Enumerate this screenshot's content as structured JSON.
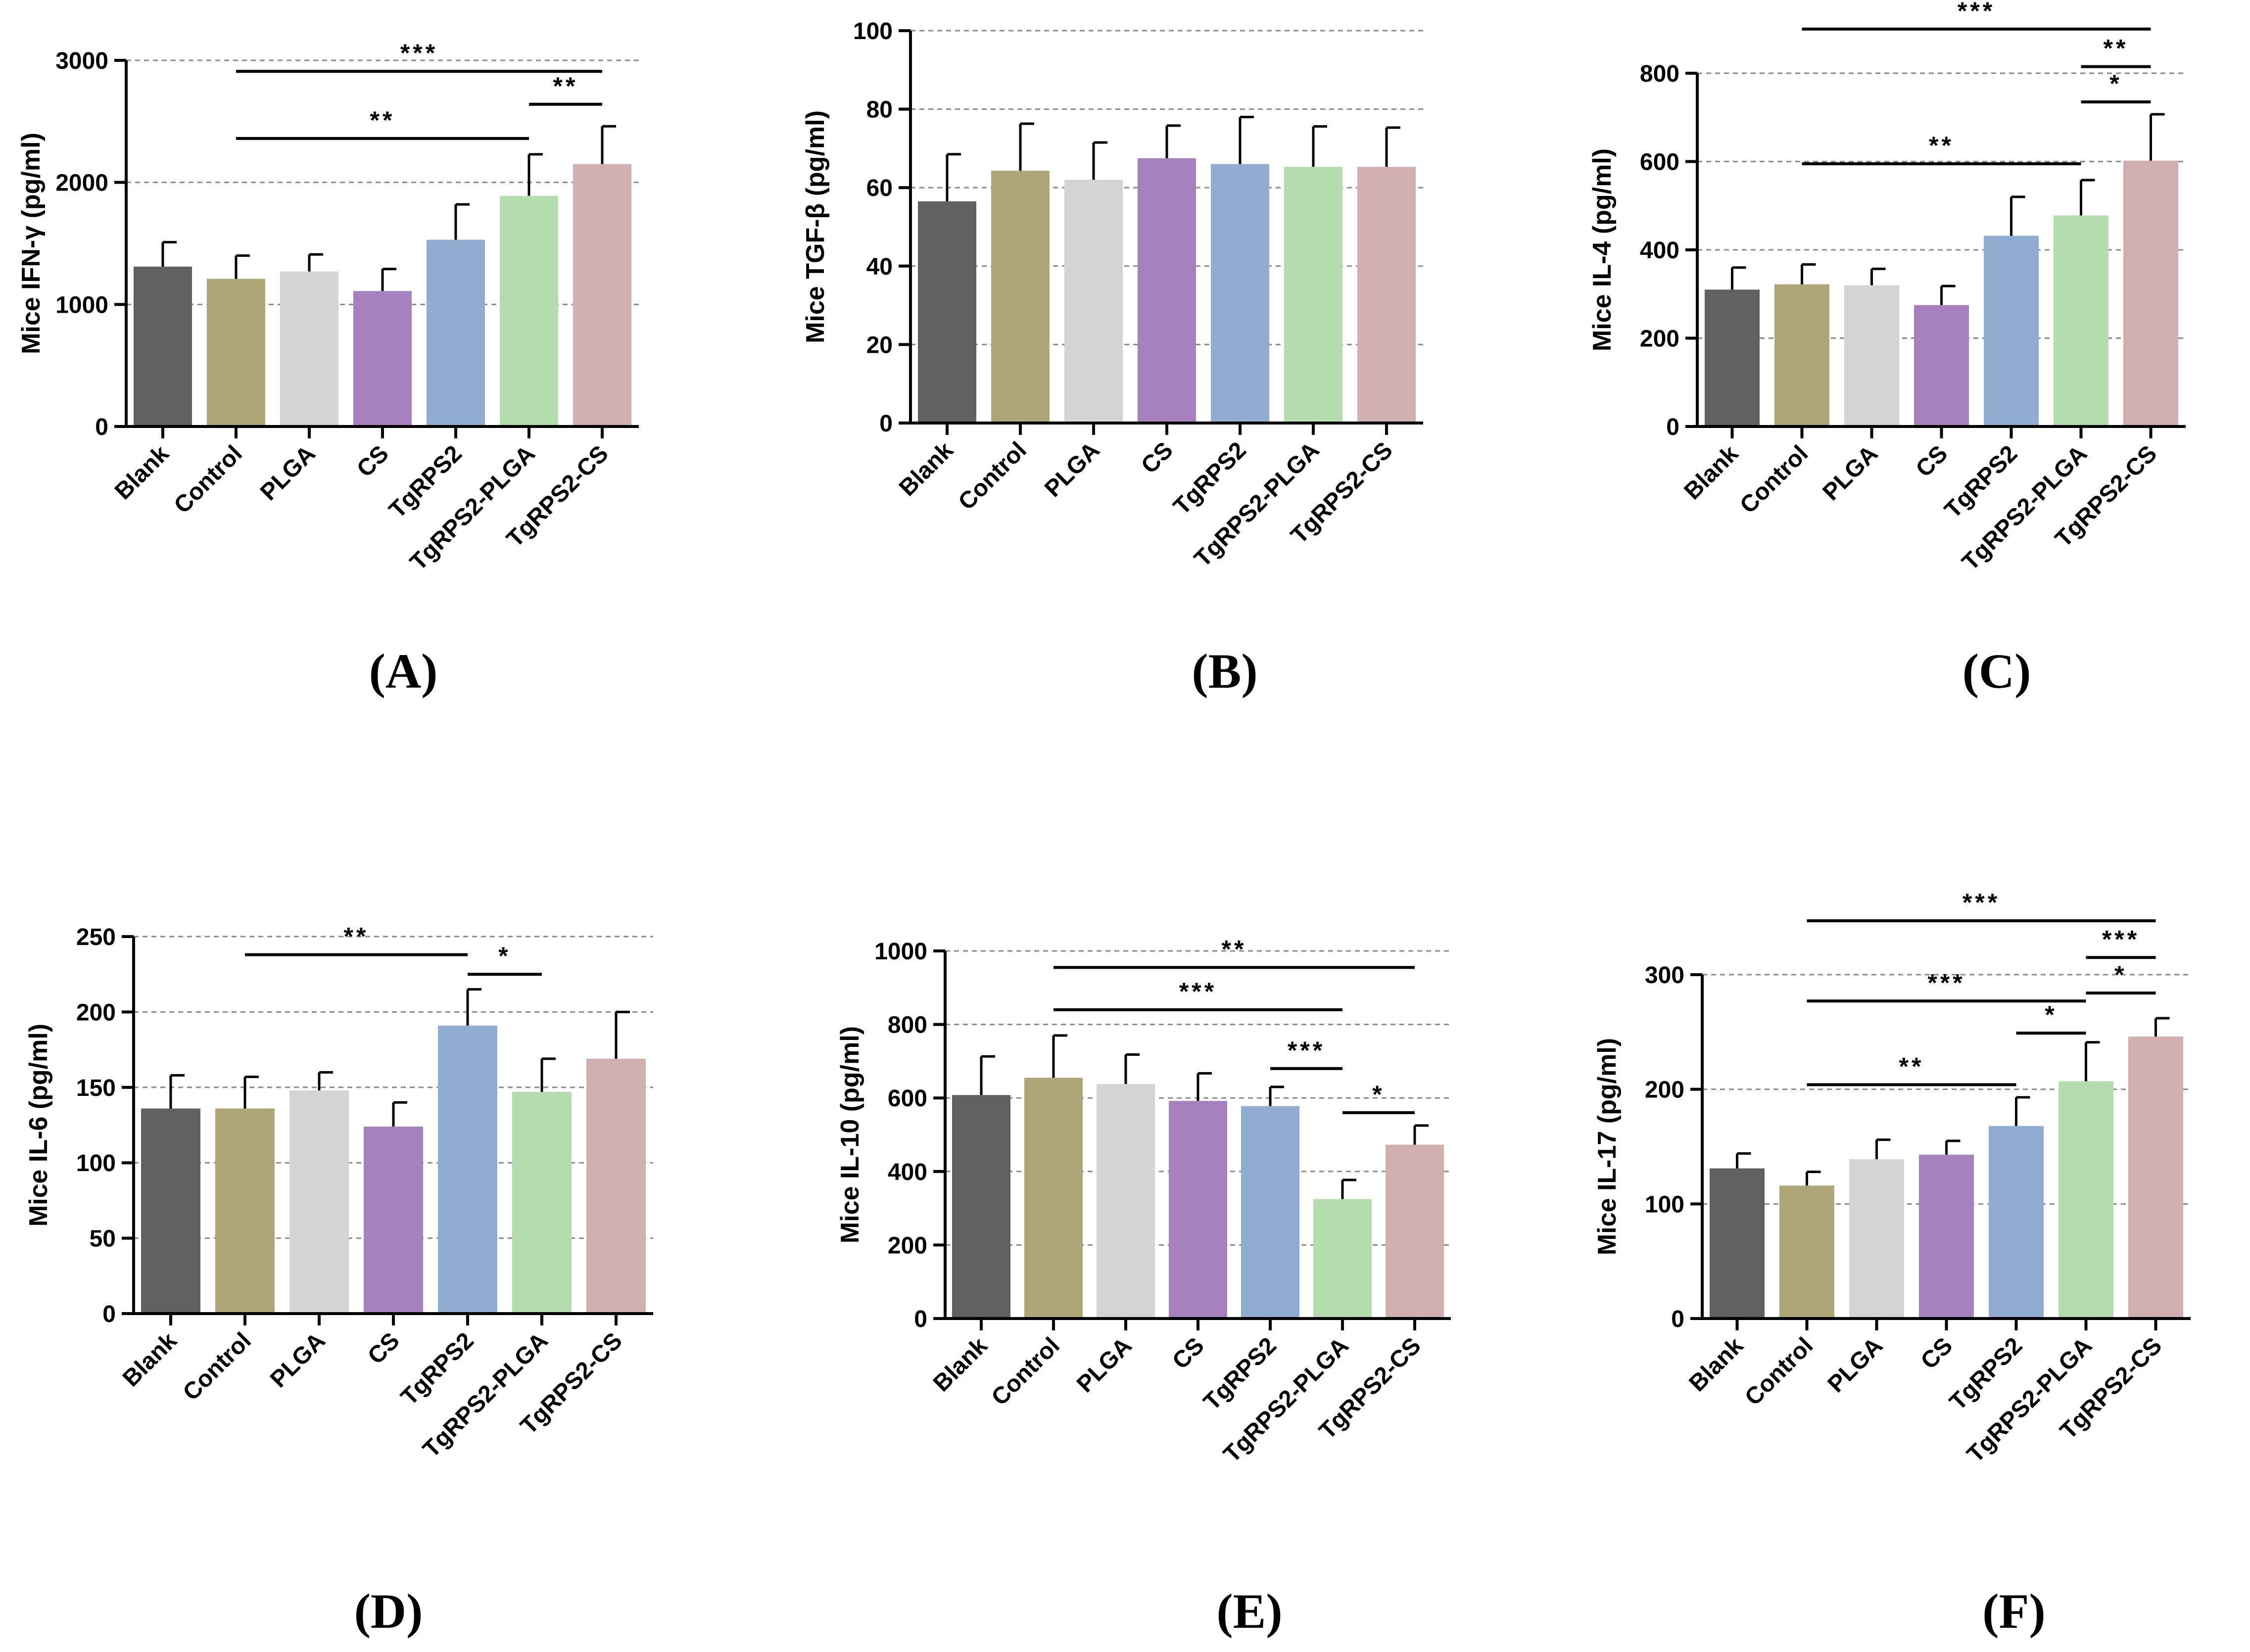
{
  "chart_data": [
    {
      "type": "bar",
      "panel_label": "(A)",
      "ylabel": "Mice IFN-γ (pg/ml)",
      "categories": [
        "Blank",
        "Control",
        "PLGA",
        "CS",
        "TgRPS2",
        "TgRPS2-PLGA",
        "TgRPS2-CS"
      ],
      "values": [
        1310,
        1210,
        1270,
        1110,
        1530,
        1890,
        2150
      ],
      "errors": [
        200,
        190,
        140,
        180,
        290,
        340,
        310
      ],
      "colors": [
        "#606060",
        "#afa677",
        "#d4d4d4",
        "#a781bd",
        "#91abd1",
        "#b5dcae",
        "#d1aeb0"
      ],
      "ylim": [
        0,
        3000
      ],
      "yticks": [
        0,
        1000,
        2000,
        3000
      ],
      "yticklabels": [
        "0",
        "1000",
        "2000",
        "3000"
      ],
      "grid": true,
      "significance": [
        {
          "from": 1,
          "to": 6,
          "level": 2910,
          "label": "***"
        },
        {
          "from": 1,
          "to": 5,
          "level": 2360,
          "label": "**"
        },
        {
          "from": 5,
          "to": 6,
          "level": 2640,
          "label": "**"
        }
      ]
    },
    {
      "type": "bar",
      "panel_label": "(B)",
      "ylabel": "Mice TGF-β (pg/ml)",
      "categories": [
        "Blank",
        "Control",
        "PLGA",
        "CS",
        "TgRPS2",
        "TgRPS2-PLGA",
        "TgRPS2-CS"
      ],
      "values": [
        56.5,
        64.3,
        62,
        67.5,
        66,
        65.3,
        65.3
      ],
      "errors": [
        12,
        12,
        9.5,
        8.3,
        12,
        10.3,
        10
      ],
      "colors": [
        "#606060",
        "#afa677",
        "#d4d4d4",
        "#a781bd",
        "#91abd1",
        "#b5dcae",
        "#d1aeb0"
      ],
      "ylim": [
        0,
        100
      ],
      "yticks": [
        0,
        20,
        40,
        60,
        80,
        100
      ],
      "yticklabels": [
        "0",
        "20",
        "40",
        "60",
        "80",
        "100"
      ],
      "grid": true,
      "significance": []
    },
    {
      "type": "bar",
      "panel_label": "(C)",
      "ylabel": "Mice IL-4 (pg/ml)",
      "categories": [
        "Blank",
        "Control",
        "PLGA",
        "CS",
        "TgRPS2",
        "TgRPS2-PLGA",
        "TgRPS2-CS"
      ],
      "values": [
        310,
        322,
        320,
        275,
        432,
        478,
        602
      ],
      "errors": [
        50,
        45,
        37,
        43,
        88,
        80,
        105
      ],
      "colors": [
        "#606060",
        "#afa677",
        "#d4d4d4",
        "#a781bd",
        "#91abd1",
        "#b5dcae",
        "#d1aeb0"
      ],
      "ylim": [
        0,
        800
      ],
      "yticks": [
        0,
        200,
        400,
        600,
        800
      ],
      "yticklabels": [
        "0",
        "200",
        "400",
        "600",
        "800"
      ],
      "grid": true,
      "significance": [
        {
          "from": 1,
          "to": 6,
          "level": 900,
          "label": "***"
        },
        {
          "from": 5,
          "to": 6,
          "level": 815,
          "label": "**"
        },
        {
          "from": 5,
          "to": 6,
          "level": 735,
          "label": "*"
        },
        {
          "from": 1,
          "to": 5,
          "level": 595,
          "label": "**"
        }
      ]
    },
    {
      "type": "bar",
      "panel_label": "(D)",
      "ylabel": "Mice IL-6 (pg/ml)",
      "categories": [
        "Blank",
        "Control",
        "PLGA",
        "CS",
        "TgRPS2",
        "TgRPS2-PLGA",
        "TgRPS2-CS"
      ],
      "values": [
        136,
        136,
        148,
        124,
        191,
        147,
        169
      ],
      "errors": [
        22,
        21,
        12,
        16,
        24,
        22,
        31
      ],
      "colors": [
        "#606060",
        "#afa677",
        "#d4d4d4",
        "#a781bd",
        "#91abd1",
        "#b5dcae",
        "#d1aeb0"
      ],
      "ylim": [
        0,
        250
      ],
      "yticks": [
        0,
        50,
        100,
        150,
        200,
        250
      ],
      "yticklabels": [
        "0",
        "50",
        "100",
        "150",
        "200",
        "250"
      ],
      "grid": true,
      "significance": [
        {
          "from": 1,
          "to": 4,
          "level": 238,
          "label": "**"
        },
        {
          "from": 4,
          "to": 5,
          "level": 225,
          "label": "*"
        }
      ]
    },
    {
      "type": "bar",
      "panel_label": "(E)",
      "ylabel": "Mice IL-10 (pg/ml)",
      "categories": [
        "Blank",
        "Control",
        "PLGA",
        "CS",
        "TgRPS2",
        "TgRPS2-PLGA",
        "TgRPS2-CS"
      ],
      "values": [
        608,
        655,
        638,
        592,
        578,
        325,
        473
      ],
      "errors": [
        105,
        115,
        80,
        75,
        52,
        52,
        52
      ],
      "colors": [
        "#606060",
        "#afa677",
        "#d4d4d4",
        "#a781bd",
        "#91abd1",
        "#b5dcae",
        "#d1aeb0"
      ],
      "ylim": [
        0,
        1000
      ],
      "yticks": [
        0,
        200,
        400,
        600,
        800,
        1000
      ],
      "yticklabels": [
        "0",
        "200",
        "400",
        "600",
        "800",
        "1000"
      ],
      "grid": true,
      "significance": [
        {
          "from": 1,
          "to": 6,
          "level": 955,
          "label": "**"
        },
        {
          "from": 1,
          "to": 5,
          "level": 840,
          "label": "***"
        },
        {
          "from": 4,
          "to": 5,
          "level": 680,
          "label": "***"
        },
        {
          "from": 5,
          "to": 6,
          "level": 560,
          "label": "*"
        }
      ]
    },
    {
      "type": "bar",
      "panel_label": "(F)",
      "ylabel": "Mice IL-17 (pg/ml)",
      "categories": [
        "Blank",
        "Control",
        "PLGA",
        "CS",
        "TgRPS2",
        "TgRPS2-PLGA",
        "TgRPS2-CS"
      ],
      "values": [
        131,
        116,
        139,
        143,
        168,
        207,
        246
      ],
      "errors": [
        13,
        12,
        17,
        12,
        25,
        34,
        16
      ],
      "colors": [
        "#606060",
        "#afa677",
        "#d4d4d4",
        "#a781bd",
        "#91abd1",
        "#b5dcae",
        "#d1aeb0"
      ],
      "ylim": [
        0,
        300
      ],
      "yticks": [
        0,
        100,
        200,
        300
      ],
      "yticklabels": [
        "0",
        "100",
        "200",
        "300"
      ],
      "grid": true,
      "significance": [
        {
          "from": 1,
          "to": 6,
          "level": 347,
          "label": "***"
        },
        {
          "from": 5,
          "to": 6,
          "level": 315,
          "label": "***"
        },
        {
          "from": 1,
          "to": 5,
          "level": 277,
          "label": "***"
        },
        {
          "from": 5,
          "to": 6,
          "level": 284,
          "label": "*"
        },
        {
          "from": 4,
          "to": 5,
          "level": 249,
          "label": "*"
        },
        {
          "from": 1,
          "to": 4,
          "level": 204,
          "label": "**"
        }
      ]
    }
  ]
}
